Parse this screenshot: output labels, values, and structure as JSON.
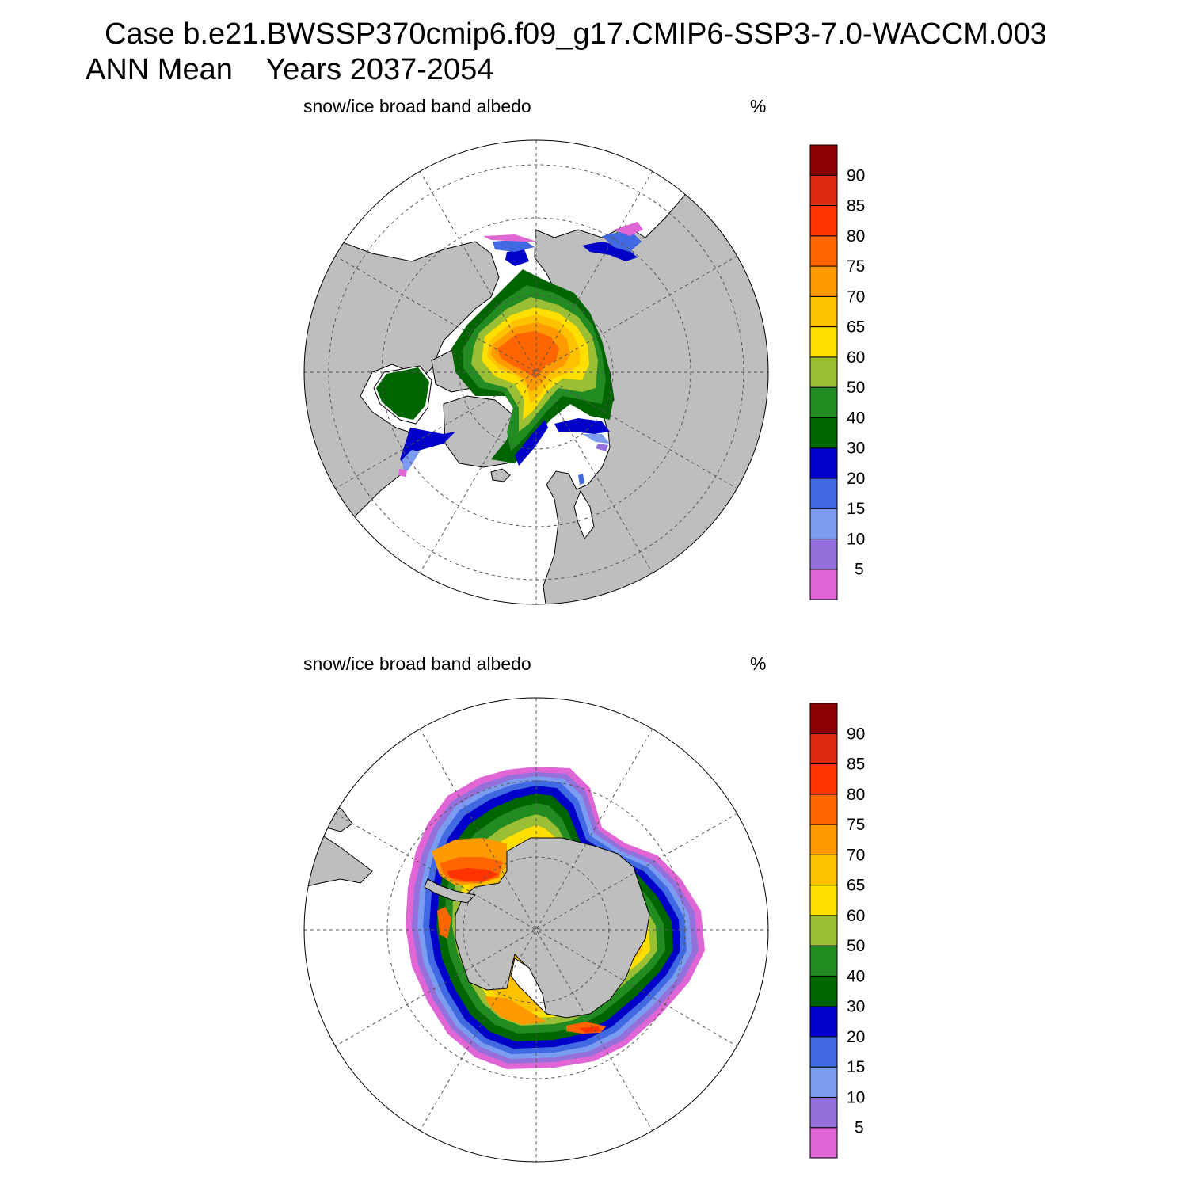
{
  "title": {
    "line1": "Case b.e21.BWSSP370cmip6.f09_g17.CMIP6-SSP3-7.0-WACCM.003",
    "line2_season": "ANN Mean",
    "line2_years": "Years 2037-2054"
  },
  "panels": [
    {
      "id": "north",
      "hemisphere": "Northern Hemisphere polar stereographic",
      "variable_label": "snow/ice broad band albedo",
      "units_label": "%"
    },
    {
      "id": "south",
      "hemisphere": "Southern Hemisphere polar stereographic",
      "variable_label": "snow/ice broad band albedo",
      "units_label": "%"
    }
  ],
  "colorbar": {
    "labels": [
      "5",
      "10",
      "15",
      "20",
      "30",
      "40",
      "50",
      "60",
      "65",
      "70",
      "75",
      "80",
      "85",
      "90"
    ],
    "colors": [
      "#e066d6",
      "#9370db",
      "#7b9cf0",
      "#4169e1",
      "#0000c8",
      "#006400",
      "#228b22",
      "#9abf34",
      "#ffdf00",
      "#ffc200",
      "#ff9a00",
      "#ff6600",
      "#ff3300",
      "#dc2a12",
      "#8b0000"
    ]
  },
  "styles": {
    "land_color": "#bebebe",
    "ocean_color": "#ffffff",
    "grid_color": "#555555"
  }
}
